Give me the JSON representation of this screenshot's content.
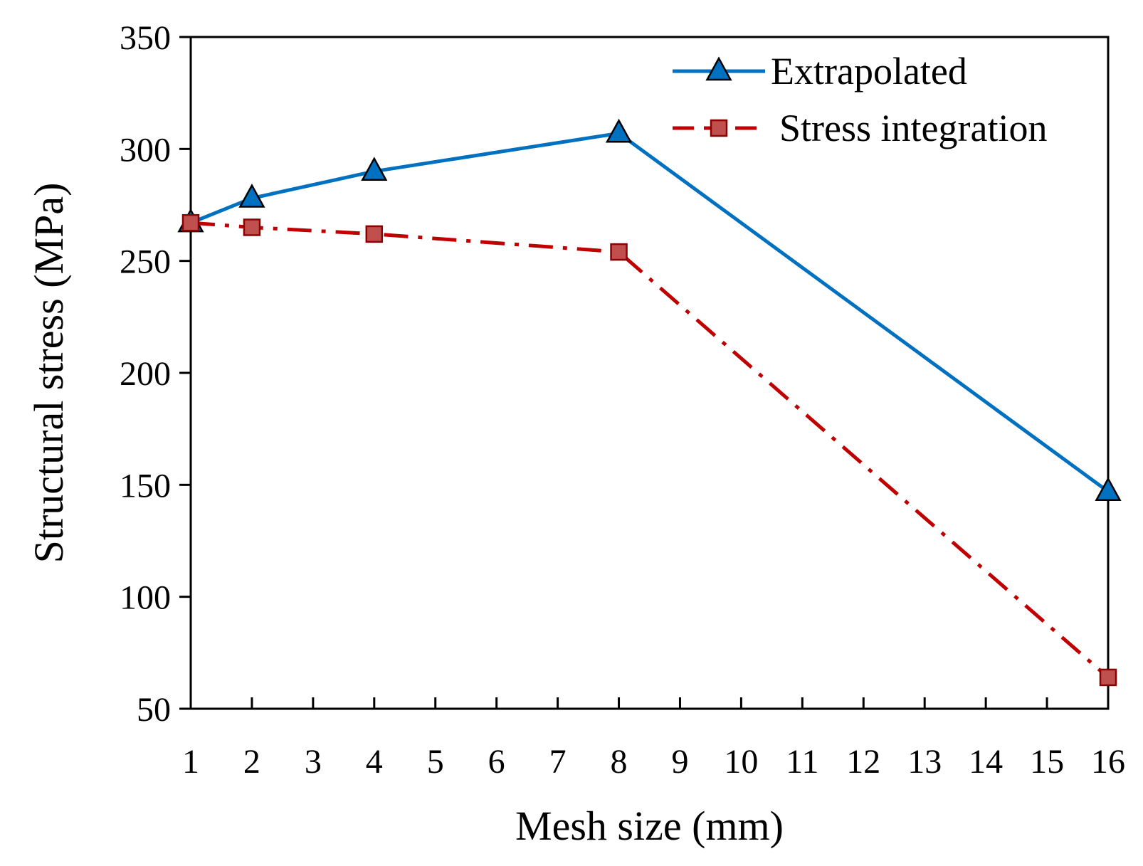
{
  "chart_data": {
    "type": "line",
    "xlabel": "Mesh size (mm)",
    "ylabel": "Structural stress (MPa)",
    "x_ticks": [
      "1",
      "2",
      "3",
      "4",
      "5",
      "6",
      "7",
      "8",
      "9",
      "10",
      "11",
      "12",
      "13",
      "14",
      "15",
      "16"
    ],
    "y_ticks": [
      "50",
      "100",
      "150",
      "200",
      "250",
      "300",
      "350"
    ],
    "ylim": [
      50,
      350
    ],
    "xlim": [
      1,
      16
    ],
    "grid": false,
    "legend_position": "top-right",
    "series": [
      {
        "name": "Extrapolated",
        "color": "#0070C0",
        "marker": "triangle",
        "line_style": "solid",
        "x": [
          1,
          2,
          4,
          8,
          16
        ],
        "y": [
          267,
          278,
          290,
          307,
          147
        ]
      },
      {
        "name": "Stress integration",
        "color": "#C00000",
        "marker": "square",
        "line_style": "dash-dot",
        "x": [
          1,
          2,
          4,
          8,
          16
        ],
        "y": [
          267,
          265,
          262,
          254,
          64
        ]
      }
    ]
  }
}
